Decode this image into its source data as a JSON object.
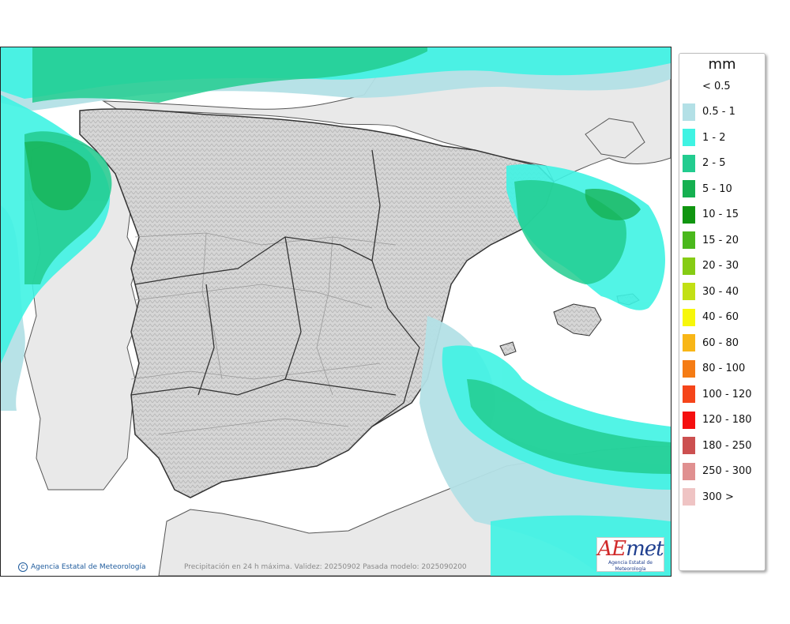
{
  "map": {
    "credit": "Agencia Estatal de Meteorología",
    "caption": "Precipitación en 24 h máxima. Validez: 20250902 Pasada modelo: 2025090200"
  },
  "logo": {
    "word_a": "AE",
    "word_b": "met",
    "subtitle": "Agencia Estatal de Meteorología"
  },
  "legend": {
    "title": "mm",
    "items": [
      {
        "label": "< 0.5",
        "color": "#ffffff"
      },
      {
        "label": "0.5 - 1",
        "color": "#b3e0e6"
      },
      {
        "label": "1 - 2",
        "color": "#3ff3e3"
      },
      {
        "label": "2 - 5",
        "color": "#22cc8f"
      },
      {
        "label": "5 - 10",
        "color": "#15b050"
      },
      {
        "label": "10 - 15",
        "color": "#109510"
      },
      {
        "label": "15 - 20",
        "color": "#4ab81c"
      },
      {
        "label": "20 - 30",
        "color": "#86cc14"
      },
      {
        "label": "30 - 40",
        "color": "#c2e014"
      },
      {
        "label": "40 - 60",
        "color": "#f7f70a"
      },
      {
        "label": "60 - 80",
        "color": "#f8b617"
      },
      {
        "label": "80 - 100",
        "color": "#f57c14"
      },
      {
        "label": "100 - 120",
        "color": "#f5451a"
      },
      {
        "label": "120 - 180",
        "color": "#f50f0f"
      },
      {
        "label": "180 - 250",
        "color": "#cc5050"
      },
      {
        "label": "250 - 300",
        "color": "#e09090"
      },
      {
        "label": "300 >",
        "color": "#efc4c4"
      }
    ]
  }
}
